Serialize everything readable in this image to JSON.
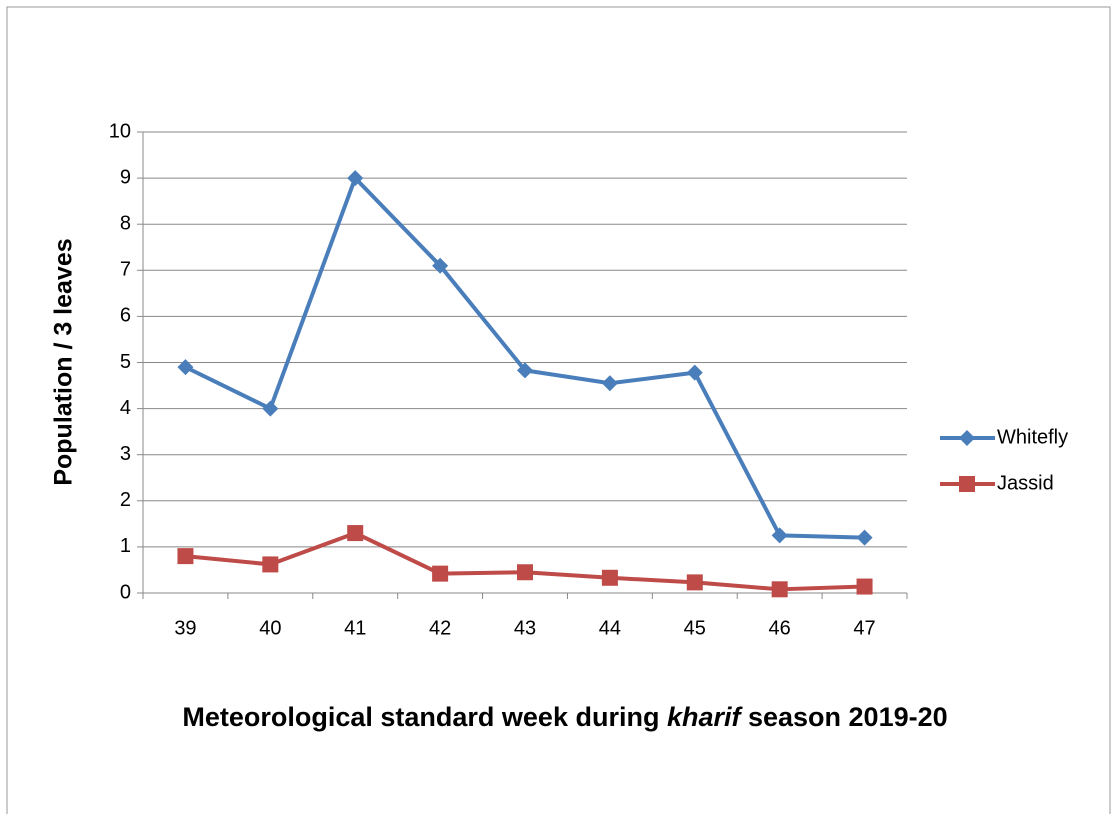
{
  "chart_data": {
    "type": "line",
    "y_label": "Population / 3 leaves",
    "x_label": [
      "Meteorological standard week during ",
      "kharif",
      " season 2019-20"
    ],
    "categories": [
      "39",
      "40",
      "41",
      "42",
      "43",
      "44",
      "45",
      "46",
      "47"
    ],
    "series": [
      {
        "name": "Whitefly",
        "color": "#4a7ebb",
        "marker": "diamond",
        "values": [
          4.9,
          4.0,
          9.0,
          7.1,
          4.83,
          4.55,
          4.78,
          1.25,
          1.2
        ]
      },
      {
        "name": "Jassid",
        "color": "#be4b48",
        "marker": "square",
        "values": [
          0.8,
          0.62,
          1.3,
          0.42,
          0.45,
          0.33,
          0.23,
          0.08,
          0.14
        ]
      }
    ],
    "ylim": [
      0,
      10
    ],
    "yticks": [
      0,
      1,
      2,
      3,
      4,
      5,
      6,
      7,
      8,
      9,
      10
    ],
    "grid": true,
    "legend": "right"
  }
}
